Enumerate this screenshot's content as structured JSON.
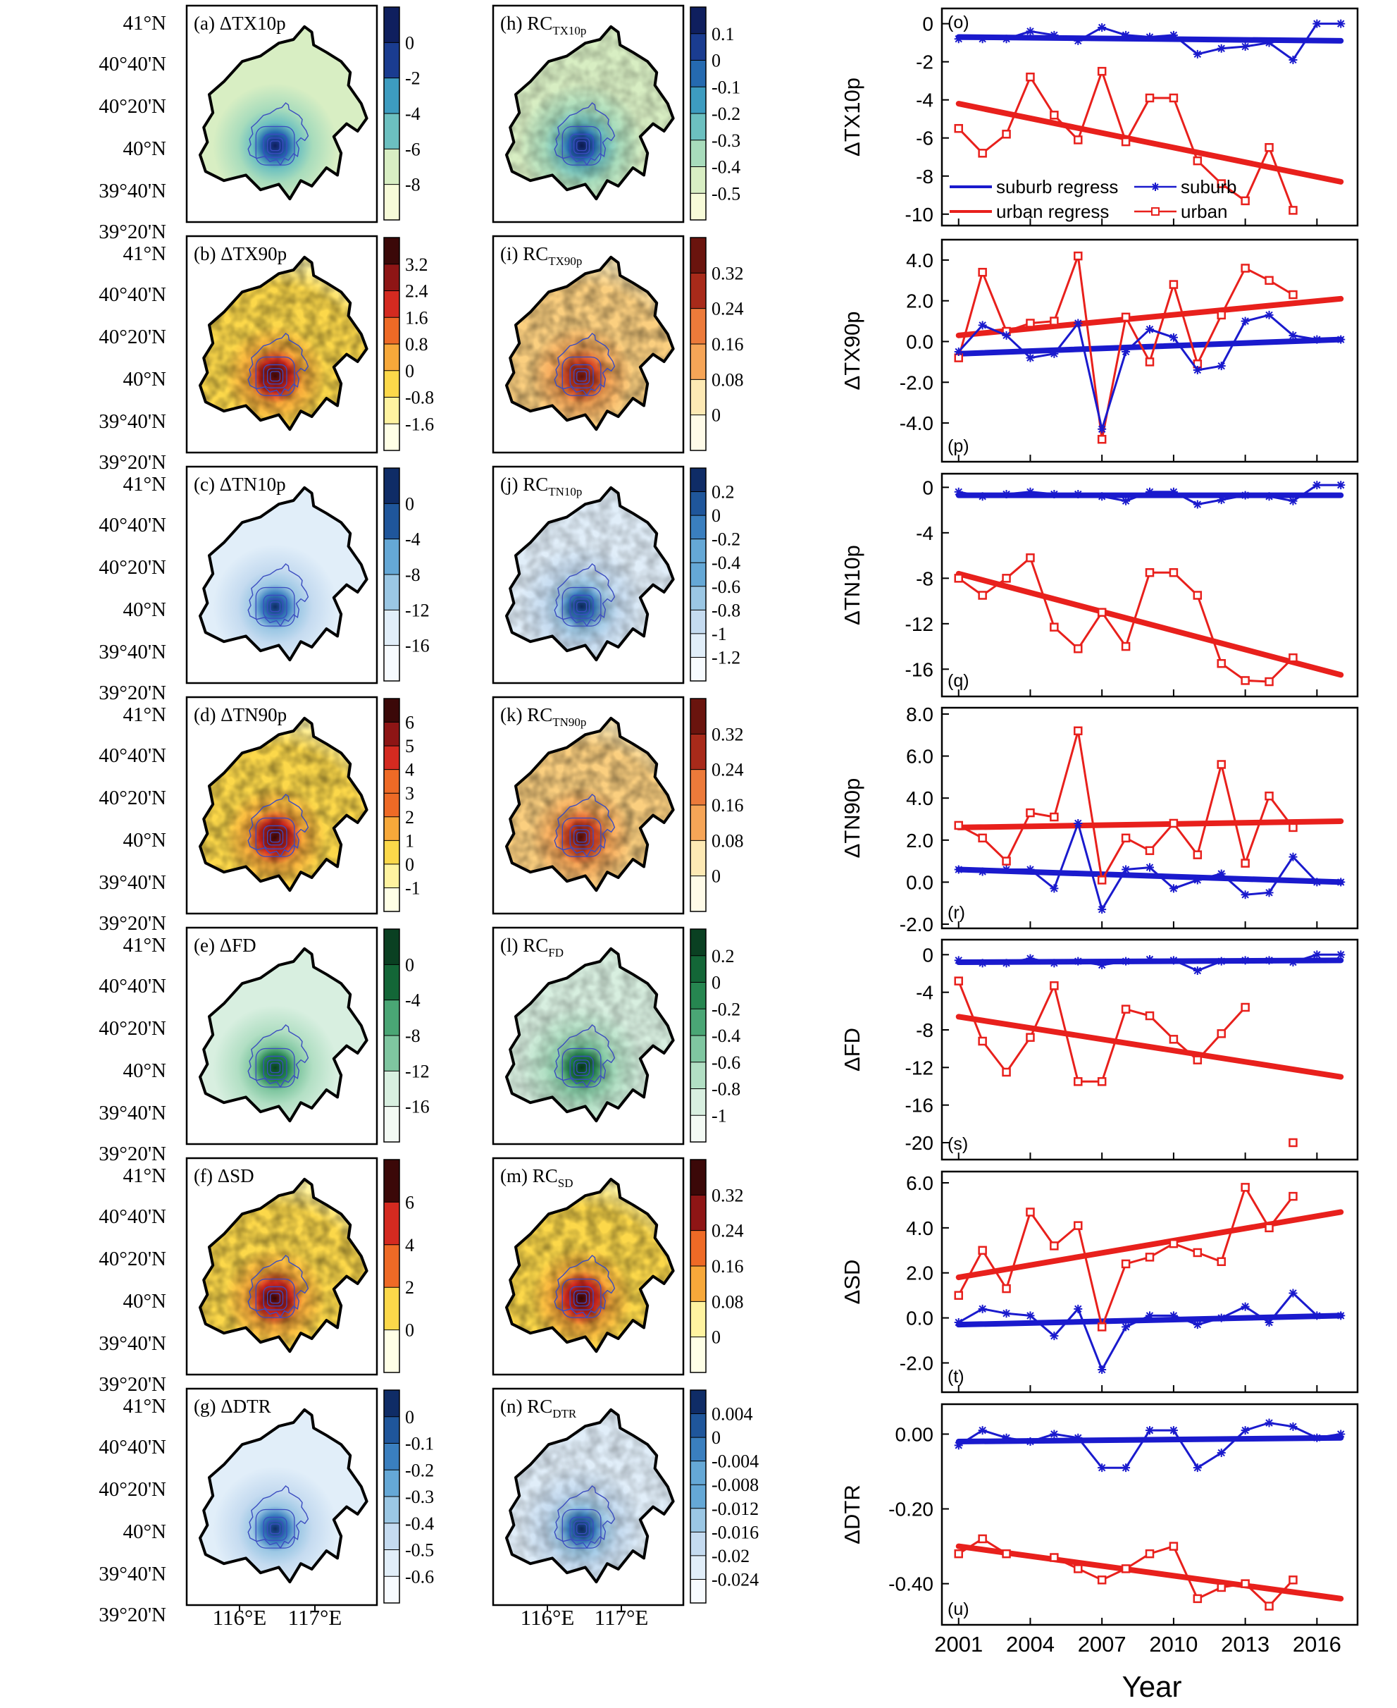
{
  "map_axes": {
    "lat_labels": [
      "41°N",
      "40°40'N",
      "40°20'N",
      "40°N",
      "39°40'N",
      "39°20'N"
    ],
    "lon_labels": [
      "116°E",
      "117°E"
    ]
  },
  "map_panels": [
    {
      "col": 0,
      "row": 0,
      "tag": "(a)",
      "name": "ΔTX10p",
      "sub": "",
      "palette": "greenblue",
      "cbar": [
        "0",
        "-2",
        "-4",
        "-6",
        "-8"
      ]
    },
    {
      "col": 0,
      "row": 1,
      "tag": "(b)",
      "name": "ΔTX90p",
      "sub": "",
      "palette": "hot",
      "cbar": [
        "3.2",
        "2.4",
        "1.6",
        "0.8",
        "0",
        "-0.8",
        "-1.6"
      ]
    },
    {
      "col": 0,
      "row": 2,
      "tag": "(c)",
      "name": "ΔTN10p",
      "sub": "",
      "palette": "blue",
      "cbar": [
        "0",
        "-4",
        "-8",
        "-12",
        "-16"
      ]
    },
    {
      "col": 0,
      "row": 3,
      "tag": "(d)",
      "name": "ΔTN90p",
      "sub": "",
      "palette": "hot",
      "cbar": [
        "6",
        "5",
        "4",
        "3",
        "2",
        "1",
        "0",
        "-1"
      ]
    },
    {
      "col": 0,
      "row": 4,
      "tag": "(e)",
      "name": "ΔFD",
      "sub": "",
      "palette": "green",
      "cbar": [
        "0",
        "-4",
        "-8",
        "-12",
        "-16"
      ]
    },
    {
      "col": 0,
      "row": 5,
      "tag": "(f)",
      "name": "ΔSD",
      "sub": "",
      "palette": "hot",
      "cbar": [
        "6",
        "4",
        "2",
        "0"
      ]
    },
    {
      "col": 0,
      "row": 6,
      "tag": "(g)",
      "name": "ΔDTR",
      "sub": "",
      "palette": "blue",
      "cbar": [
        "0",
        "-0.1",
        "-0.2",
        "-0.3",
        "-0.4",
        "-0.5",
        "-0.6"
      ]
    },
    {
      "col": 1,
      "row": 0,
      "tag": "(h)",
      "name": "RC",
      "sub": "TX10p",
      "palette": "greenblue",
      "cbar": [
        "0.1",
        "0",
        "-0.1",
        "-0.2",
        "-0.3",
        "-0.4",
        "-0.5"
      ]
    },
    {
      "col": 1,
      "row": 1,
      "tag": "(i)",
      "name": "RC",
      "sub": "TX90p",
      "palette": "orange",
      "cbar": [
        "0.32",
        "0.24",
        "0.16",
        "0.08",
        "0"
      ]
    },
    {
      "col": 1,
      "row": 2,
      "tag": "(j)",
      "name": "RC",
      "sub": "TN10p",
      "palette": "blue",
      "cbar": [
        "0.2",
        "0",
        "-0.2",
        "-0.4",
        "-0.6",
        "-0.8",
        "-1",
        "-1.2"
      ]
    },
    {
      "col": 1,
      "row": 3,
      "tag": "(k)",
      "name": "RC",
      "sub": "TN90p",
      "palette": "orange",
      "cbar": [
        "0.32",
        "0.24",
        "0.16",
        "0.08",
        "0"
      ]
    },
    {
      "col": 1,
      "row": 4,
      "tag": "(l)",
      "name": "RC",
      "sub": "FD",
      "palette": "green",
      "cbar": [
        "0.2",
        "0",
        "-0.2",
        "-0.4",
        "-0.6",
        "-0.8",
        "-1"
      ]
    },
    {
      "col": 1,
      "row": 5,
      "tag": "(m)",
      "name": "RC",
      "sub": "SD",
      "palette": "hot",
      "cbar": [
        "0.32",
        "0.24",
        "0.16",
        "0.08",
        "0"
      ]
    },
    {
      "col": 1,
      "row": 6,
      "tag": "(n)",
      "name": "RC",
      "sub": "DTR",
      "palette": "blue",
      "cbar": [
        "0.004",
        "0",
        "-0.004",
        "-0.008",
        "-0.012",
        "-0.016",
        "-0.02",
        "-0.024"
      ]
    }
  ],
  "chart_data": {
    "type": "line",
    "xlabel": "Year",
    "x_ticks": [
      "2001",
      "2004",
      "2007",
      "2010",
      "2013",
      "2016"
    ],
    "x": [
      2001,
      2002,
      2003,
      2004,
      2005,
      2006,
      2007,
      2008,
      2009,
      2010,
      2011,
      2012,
      2013,
      2014,
      2015,
      2016,
      2017
    ],
    "xlim": [
      2000.3,
      2017.7
    ],
    "legend": {
      "placement": "bottom",
      "entries": [
        "suburb regress",
        "suburb",
        "urban regress",
        "urban"
      ]
    },
    "colors": {
      "urban": "#e8201c",
      "suburb": "#1a1acd"
    },
    "panels": [
      {
        "tag": "(o)",
        "ylabel": "ΔTX10p",
        "tag_pos": "top",
        "ylim": [
          -10.6,
          0.8
        ],
        "yticks": [
          "0",
          "-2",
          "-4",
          "-6",
          "-8",
          "-10"
        ],
        "ytick_values": [
          0,
          -2,
          -4,
          -6,
          -8,
          -10
        ],
        "urban": [
          -5.5,
          -6.8,
          -5.8,
          -2.8,
          -4.8,
          -6.1,
          -2.5,
          -6.2,
          -3.9,
          -3.9,
          -7.2,
          -8.4,
          -9.3,
          -6.5,
          -9.8,
          null,
          null
        ],
        "urban_regress": [
          -4.2,
          -8.3
        ],
        "suburb": [
          -0.8,
          -0.8,
          -0.8,
          -0.4,
          -0.6,
          -0.9,
          -0.2,
          -0.6,
          -0.7,
          -0.6,
          -1.6,
          -1.3,
          -1.2,
          -1.0,
          -1.9,
          0.0,
          0.0
        ],
        "suburb_regress": [
          -0.7,
          -0.9
        ]
      },
      {
        "tag": "(p)",
        "ylabel": "ΔTX90p",
        "tag_pos": "bottom",
        "ylim": [
          -5.9,
          5.0
        ],
        "yticks": [
          "4.0",
          "2.0",
          "0.0",
          "-2.0",
          "-4.0"
        ],
        "ytick_values": [
          4,
          2,
          0,
          -2,
          -4
        ],
        "urban": [
          -0.8,
          3.4,
          0.5,
          0.9,
          1.0,
          4.2,
          -4.8,
          1.2,
          -1.0,
          2.8,
          -1.1,
          1.3,
          3.6,
          3.0,
          2.3,
          null,
          null
        ],
        "urban_regress": [
          0.3,
          2.1
        ],
        "suburb": [
          -0.5,
          0.8,
          0.3,
          -0.8,
          -0.6,
          0.9,
          -4.3,
          -0.5,
          0.6,
          0.2,
          -1.4,
          -1.2,
          1.0,
          1.3,
          0.3,
          0.1,
          0.1
        ],
        "suburb_regress": [
          -0.6,
          0.1
        ]
      },
      {
        "tag": "(q)",
        "ylabel": "ΔTN10p",
        "tag_pos": "bottom",
        "ylim": [
          -18.4,
          1.2
        ],
        "yticks": [
          "0",
          "-4",
          "-8",
          "-12",
          "-16"
        ],
        "ytick_values": [
          0,
          -4,
          -8,
          -12,
          -16
        ],
        "urban": [
          -8.0,
          -9.5,
          -8.0,
          -6.2,
          -12.3,
          -14.2,
          -11.0,
          -14.0,
          -7.5,
          -7.5,
          -9.5,
          -15.5,
          -17.0,
          -17.1,
          -15.0,
          null,
          null
        ],
        "urban_regress": [
          -7.6,
          -16.5
        ],
        "suburb": [
          -0.4,
          -0.8,
          -0.6,
          -0.4,
          -0.6,
          -0.6,
          -0.8,
          -1.2,
          -0.4,
          -0.4,
          -1.5,
          -1.1,
          -0.7,
          -0.8,
          -1.2,
          0.2,
          0.2
        ],
        "suburb_regress": [
          -0.7,
          -0.7
        ]
      },
      {
        "tag": "(r)",
        "ylabel": "ΔTN90p",
        "tag_pos": "bottom",
        "ylim": [
          -2.2,
          8.3
        ],
        "yticks": [
          "8.0",
          "6.0",
          "4.0",
          "2.0",
          "0.0",
          "-2.0"
        ],
        "ytick_values": [
          8,
          6,
          4,
          2,
          0,
          -2
        ],
        "urban": [
          2.7,
          2.1,
          1.0,
          3.3,
          3.1,
          7.2,
          0.1,
          2.1,
          1.5,
          2.8,
          1.3,
          5.6,
          0.9,
          4.1,
          2.6,
          null,
          null
        ],
        "urban_regress": [
          2.6,
          2.9
        ],
        "suburb": [
          0.6,
          0.5,
          0.6,
          0.6,
          -0.3,
          2.8,
          -1.3,
          0.6,
          0.7,
          -0.3,
          0.1,
          0.4,
          -0.6,
          -0.5,
          1.2,
          0.0,
          0.0
        ],
        "suburb_regress": [
          0.6,
          0.0
        ]
      },
      {
        "tag": "(s)",
        "ylabel": "ΔFD",
        "tag_pos": "bottom",
        "ylim": [
          -21.8,
          1.6
        ],
        "yticks": [
          "0",
          "-4",
          "-8",
          "-12",
          "-16",
          "-20"
        ],
        "ytick_values": [
          0,
          -4,
          -8,
          -12,
          -16,
          -20
        ],
        "urban": [
          -2.8,
          -9.2,
          -12.5,
          -8.8,
          -3.3,
          -13.5,
          -13.5,
          -5.8,
          -6.5,
          -9.0,
          -11.2,
          -8.4,
          -5.6,
          null,
          -20.0,
          null,
          null
        ],
        "urban_regress": [
          -6.6,
          -13.0
        ],
        "suburb": [
          -0.6,
          -0.9,
          -0.9,
          -0.4,
          -0.9,
          -0.7,
          -1.1,
          -0.7,
          -0.5,
          -0.6,
          -1.7,
          -0.7,
          -0.6,
          -0.6,
          -0.8,
          0.0,
          0.0
        ],
        "suburb_regress": [
          -0.8,
          -0.6
        ]
      },
      {
        "tag": "(t)",
        "ylabel": "ΔSD",
        "tag_pos": "bottom",
        "ylim": [
          -3.3,
          6.5
        ],
        "yticks": [
          "6.0",
          "4.0",
          "2.0",
          "0.0",
          "-2.0"
        ],
        "ytick_values": [
          6,
          4,
          2,
          0,
          -2
        ],
        "urban": [
          1.0,
          3.0,
          1.3,
          4.7,
          3.2,
          4.1,
          -0.4,
          2.4,
          2.7,
          3.3,
          2.9,
          2.5,
          5.8,
          4.0,
          5.4,
          null,
          null
        ],
        "urban_regress": [
          1.8,
          4.7
        ],
        "suburb": [
          -0.2,
          0.4,
          0.2,
          0.1,
          -0.8,
          0.4,
          -2.3,
          -0.4,
          0.1,
          0.1,
          -0.3,
          0.0,
          0.5,
          -0.2,
          1.1,
          0.1,
          0.1
        ],
        "suburb_regress": [
          -0.3,
          0.1
        ]
      },
      {
        "tag": "(u)",
        "ylabel": "ΔDTR",
        "tag_pos": "bottom",
        "ylim": [
          -0.51,
          0.08
        ],
        "yticks": [
          "0.00",
          "-0.20",
          "-0.40"
        ],
        "ytick_values": [
          0,
          -0.2,
          -0.4
        ],
        "urban": [
          -0.32,
          -0.28,
          -0.32,
          null,
          -0.33,
          -0.36,
          -0.39,
          -0.36,
          -0.32,
          -0.3,
          -0.44,
          -0.41,
          -0.4,
          -0.46,
          -0.39,
          null,
          null
        ],
        "urban_regress": [
          -0.3,
          -0.44
        ],
        "suburb": [
          -0.03,
          0.01,
          -0.01,
          -0.02,
          0.0,
          -0.01,
          -0.09,
          -0.09,
          0.01,
          0.01,
          -0.09,
          -0.05,
          0.01,
          0.03,
          0.02,
          -0.01,
          0.0
        ],
        "suburb_regress": [
          -0.02,
          -0.01
        ]
      }
    ]
  }
}
